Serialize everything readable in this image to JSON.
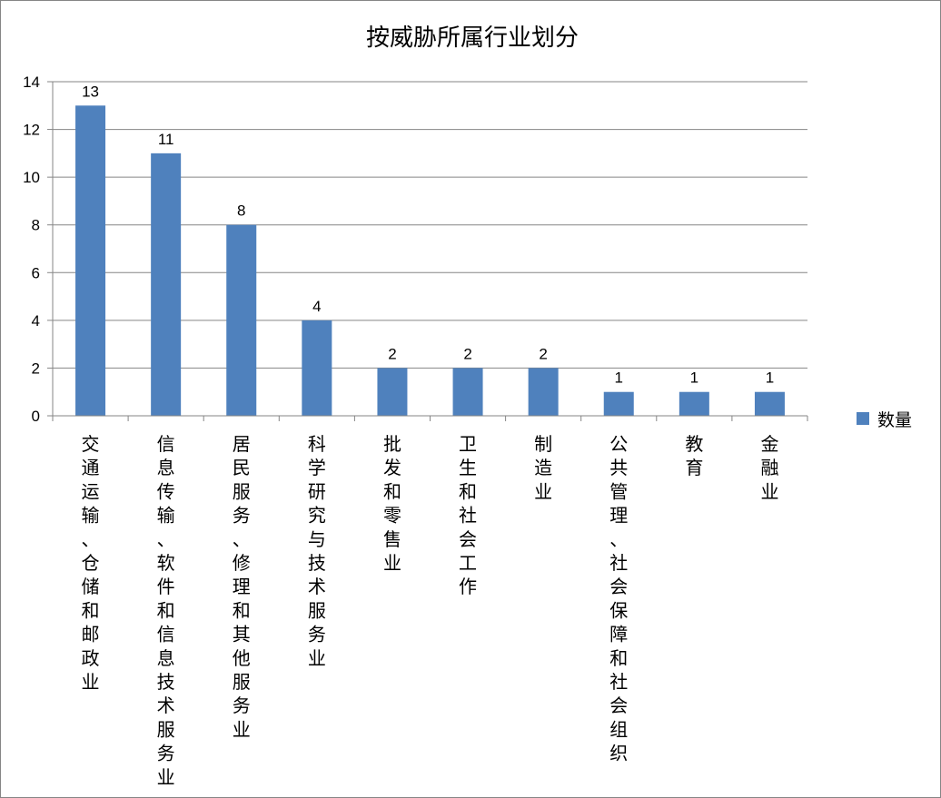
{
  "chart_data": {
    "type": "bar",
    "title": "按威胁所属行业划分",
    "categories": [
      "交通运输、仓储和邮政业",
      "信息传输、软件和信息技术服务业",
      "居民服务、修理和其他服务业",
      "科学研究与技术服务业",
      "批发和零售业",
      "卫生和社会工作",
      "制造业",
      "公共管理、社会保障和社会组织",
      "教育",
      "金融业"
    ],
    "series": [
      {
        "name": "数量",
        "values": [
          13,
          11,
          8,
          4,
          2,
          2,
          2,
          1,
          1,
          1
        ],
        "color": "#4F81BD"
      }
    ],
    "ylim": [
      0,
      14
    ],
    "yticks": [
      0,
      2,
      4,
      6,
      8,
      10,
      12,
      14
    ],
    "xlabel": "",
    "ylabel": "",
    "grid": true,
    "data_labels": true,
    "legend": "right"
  }
}
